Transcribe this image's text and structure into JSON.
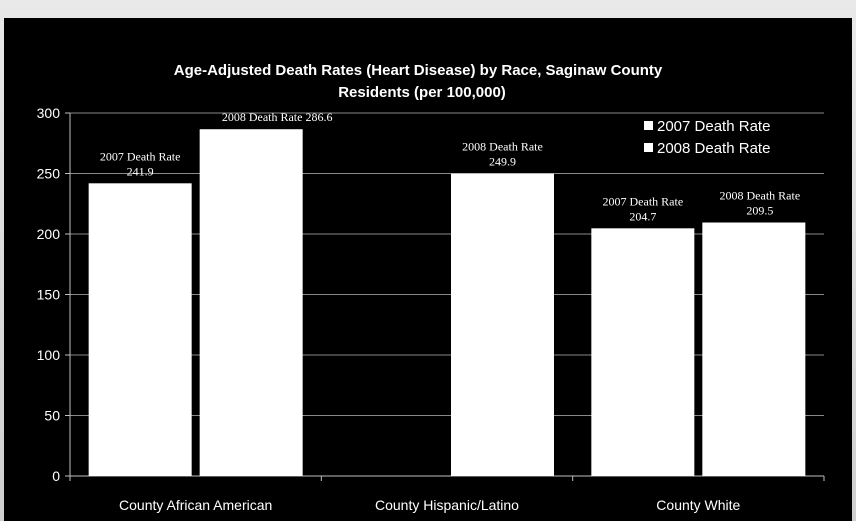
{
  "chart_data": {
    "type": "bar",
    "title": "Age-Adjusted Death Rates (Heart Disease) by Race, Saginaw County",
    "subtitle": "Residents (per 100,000)",
    "categories": [
      "County African American",
      "County Hispanic/Latino",
      "County White"
    ],
    "series": [
      {
        "name": "2007 Death Rate",
        "values": [
          241.9,
          null,
          204.7
        ],
        "color": "#ffffff"
      },
      {
        "name": "2008 Death Rate",
        "values": [
          286.6,
          249.9,
          209.5
        ],
        "color": "#ffffff"
      }
    ],
    "data_labels": [
      [
        "2007 Death Rate",
        "241.9"
      ],
      [
        "2008 Death Rate 286.6"
      ],
      [
        "2008 Death Rate",
        "249.9"
      ],
      [
        "2007 Death Rate",
        "204.7"
      ],
      [
        "2008 Death Rate",
        "209.5"
      ]
    ],
    "ylim": [
      0,
      300
    ],
    "yticks": [
      "0",
      "50",
      "100",
      "150",
      "200",
      "250",
      "300"
    ],
    "grid": true,
    "legend_position": "top-right",
    "background": "#000000",
    "text_color": "#ffffff"
  }
}
